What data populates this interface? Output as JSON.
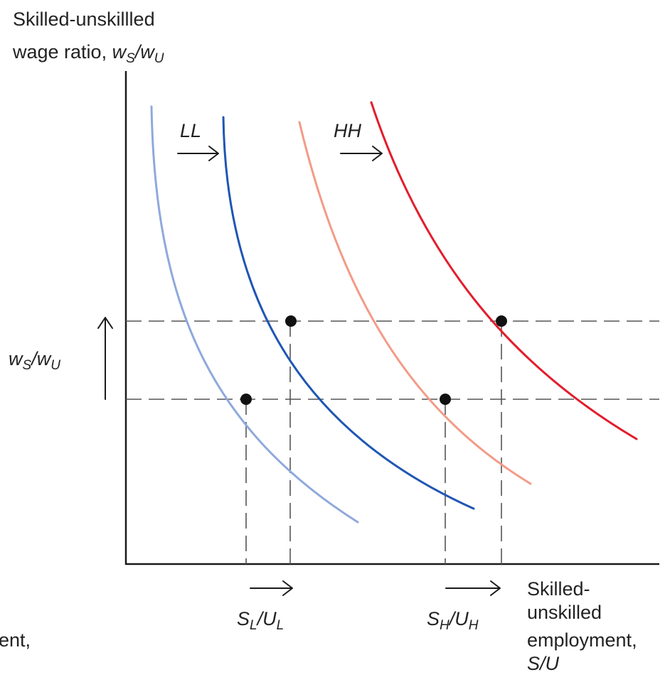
{
  "y_axis": {
    "title_line1": "Skilled-unskillled",
    "title_line2_text": "wage ratio, ",
    "title_w1": "w",
    "title_s1": "S",
    "title_slash": "/",
    "title_w2": "w",
    "title_s2": "U"
  },
  "x_axis": {
    "title_line1": "Skilled-",
    "title_line2": "unskilled",
    "title_line3": "employment,",
    "title_line4": "S/U",
    "cut_text": "ent,"
  },
  "wage_shift_label": {
    "w1": "w",
    "s1": "S",
    "slash": "/",
    "w2": "w",
    "s2": "U"
  },
  "curve_labels": {
    "low": "LL",
    "high": "HH"
  },
  "tick_low": {
    "main1": "S",
    "sub1": "L",
    "slash": "/",
    "main2": "U",
    "sub2": "L"
  },
  "tick_high": {
    "main1": "S",
    "sub1": "H",
    "slash": "/",
    "main2": "U",
    "sub2": "H"
  },
  "colors": {
    "ll_before": "#8fa9dc",
    "ll_after": "#1f56b3",
    "hh_before": "#f39b88",
    "hh_after": "#e31d2c"
  }
}
